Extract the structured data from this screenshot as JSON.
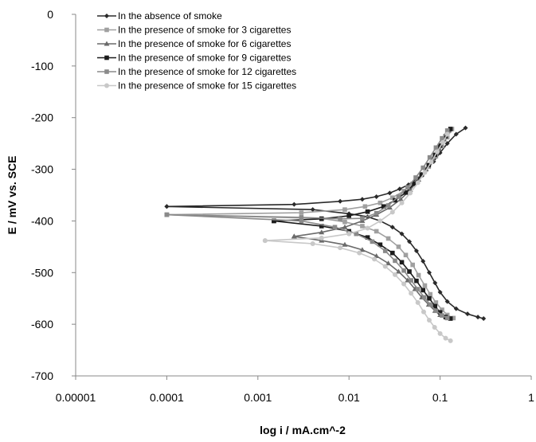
{
  "chart_data": {
    "type": "scatter",
    "title": "",
    "xlabel": "log i / mA.cm^-2",
    "ylabel": "E / mV vs. SCE",
    "x_scale": "log",
    "xlim": [
      1e-05,
      1
    ],
    "ylim": [
      -700,
      0
    ],
    "x_ticks": [
      1e-05,
      0.0001,
      0.001,
      0.01,
      0.1,
      1
    ],
    "x_tick_labels": [
      "0.00001",
      "0.0001",
      "0.001",
      "0.01",
      "0.1",
      "1"
    ],
    "y_ticks": [
      0,
      -100,
      -200,
      -300,
      -400,
      -500,
      -600,
      -700
    ],
    "y_tick_labels": [
      "0",
      "-100",
      "-200",
      "-300",
      "-400",
      "-500",
      "-600",
      "-700"
    ],
    "grid": false,
    "legend_position": "top-left",
    "series": [
      {
        "name": "In the absence of smoke",
        "color": "#2a2a2a",
        "marker": "diamond",
        "anodic": [
          [
            0.0001,
            -372
          ],
          [
            0.0025,
            -368
          ],
          [
            0.008,
            -362
          ],
          [
            0.014,
            -358
          ],
          [
            0.02,
            -353
          ],
          [
            0.028,
            -346
          ],
          [
            0.036,
            -338
          ],
          [
            0.045,
            -330
          ],
          [
            0.056,
            -318
          ],
          [
            0.07,
            -302
          ],
          [
            0.085,
            -285
          ],
          [
            0.1,
            -268
          ],
          [
            0.12,
            -250
          ],
          [
            0.15,
            -232
          ],
          [
            0.19,
            -220
          ]
        ],
        "cathodic": [
          [
            0.0001,
            -372
          ],
          [
            0.004,
            -378
          ],
          [
            0.01,
            -386
          ],
          [
            0.016,
            -392
          ],
          [
            0.022,
            -400
          ],
          [
            0.03,
            -412
          ],
          [
            0.038,
            -425
          ],
          [
            0.046,
            -440
          ],
          [
            0.055,
            -458
          ],
          [
            0.065,
            -478
          ],
          [
            0.076,
            -500
          ],
          [
            0.088,
            -520
          ],
          [
            0.1,
            -538
          ],
          [
            0.12,
            -556
          ],
          [
            0.15,
            -570
          ],
          [
            0.2,
            -580
          ],
          [
            0.26,
            -586
          ],
          [
            0.3,
            -589
          ]
        ]
      },
      {
        "name": "In the presence of smoke for 3 cigarettes",
        "color": "#a0a0a0",
        "marker": "square",
        "anodic": [
          [
            0.0001,
            -388
          ],
          [
            0.003,
            -384
          ],
          [
            0.009,
            -378
          ],
          [
            0.015,
            -372
          ],
          [
            0.022,
            -365
          ],
          [
            0.03,
            -355
          ],
          [
            0.04,
            -342
          ],
          [
            0.05,
            -328
          ],
          [
            0.062,
            -312
          ],
          [
            0.075,
            -295
          ],
          [
            0.09,
            -275
          ],
          [
            0.105,
            -255
          ],
          [
            0.12,
            -238
          ],
          [
            0.135,
            -222
          ]
        ],
        "cathodic": [
          [
            0.0001,
            -388
          ],
          [
            0.005,
            -395
          ],
          [
            0.009,
            -402
          ],
          [
            0.014,
            -410
          ],
          [
            0.02,
            -420
          ],
          [
            0.027,
            -434
          ],
          [
            0.035,
            -450
          ],
          [
            0.042,
            -466
          ],
          [
            0.05,
            -485
          ],
          [
            0.058,
            -505
          ],
          [
            0.068,
            -525
          ],
          [
            0.078,
            -542
          ],
          [
            0.09,
            -558
          ],
          [
            0.105,
            -572
          ],
          [
            0.12,
            -582
          ],
          [
            0.14,
            -588
          ]
        ]
      },
      {
        "name": "In the presence of smoke for 6 cigarettes",
        "color": "#6a6a6a",
        "marker": "triangle",
        "anodic": [
          [
            0.0025,
            -430
          ],
          [
            0.005,
            -422
          ],
          [
            0.009,
            -412
          ],
          [
            0.014,
            -400
          ],
          [
            0.02,
            -388
          ],
          [
            0.028,
            -374
          ],
          [
            0.037,
            -358
          ],
          [
            0.047,
            -340
          ],
          [
            0.058,
            -320
          ],
          [
            0.07,
            -300
          ],
          [
            0.083,
            -280
          ],
          [
            0.097,
            -260
          ],
          [
            0.11,
            -242
          ],
          [
            0.125,
            -225
          ]
        ],
        "cathodic": [
          [
            0.0025,
            -430
          ],
          [
            0.005,
            -438
          ],
          [
            0.009,
            -446
          ],
          [
            0.014,
            -456
          ],
          [
            0.02,
            -468
          ],
          [
            0.027,
            -482
          ],
          [
            0.035,
            -498
          ],
          [
            0.044,
            -515
          ],
          [
            0.053,
            -532
          ],
          [
            0.063,
            -548
          ],
          [
            0.075,
            -562
          ],
          [
            0.088,
            -574
          ],
          [
            0.1,
            -582
          ],
          [
            0.12,
            -588
          ]
        ]
      },
      {
        "name": "In the presence of smoke for 9 cigarettes",
        "color": "#1c1c1c",
        "marker": "square",
        "anodic": [
          [
            0.0015,
            -400
          ],
          [
            0.005,
            -396
          ],
          [
            0.01,
            -390
          ],
          [
            0.016,
            -382
          ],
          [
            0.024,
            -372
          ],
          [
            0.032,
            -360
          ],
          [
            0.042,
            -345
          ],
          [
            0.052,
            -328
          ],
          [
            0.063,
            -310
          ],
          [
            0.075,
            -292
          ],
          [
            0.088,
            -272
          ],
          [
            0.1,
            -254
          ],
          [
            0.115,
            -236
          ],
          [
            0.13,
            -222
          ]
        ],
        "cathodic": [
          [
            0.0015,
            -400
          ],
          [
            0.005,
            -410
          ],
          [
            0.01,
            -420
          ],
          [
            0.016,
            -432
          ],
          [
            0.022,
            -446
          ],
          [
            0.03,
            -462
          ],
          [
            0.038,
            -480
          ],
          [
            0.046,
            -498
          ],
          [
            0.055,
            -516
          ],
          [
            0.065,
            -534
          ],
          [
            0.076,
            -550
          ],
          [
            0.088,
            -565
          ],
          [
            0.1,
            -577
          ],
          [
            0.115,
            -586
          ],
          [
            0.13,
            -589
          ]
        ]
      },
      {
        "name": "In the presence of smoke for 12 cigarettes",
        "color": "#8a8a8a",
        "marker": "square",
        "anodic": [
          [
            0.0001,
            -388
          ],
          [
            0.003,
            -393
          ],
          [
            0.008,
            -396
          ],
          [
            0.014,
            -395
          ],
          [
            0.02,
            -385
          ],
          [
            0.027,
            -370
          ],
          [
            0.035,
            -353
          ],
          [
            0.044,
            -335
          ],
          [
            0.054,
            -316
          ],
          [
            0.065,
            -297
          ],
          [
            0.077,
            -277
          ],
          [
            0.09,
            -258
          ],
          [
            0.105,
            -240
          ],
          [
            0.12,
            -225
          ]
        ],
        "cathodic": [
          [
            0.0001,
            -388
          ],
          [
            0.003,
            -400
          ],
          [
            0.007,
            -412
          ],
          [
            0.012,
            -425
          ],
          [
            0.018,
            -440
          ],
          [
            0.025,
            -458
          ],
          [
            0.032,
            -477
          ],
          [
            0.04,
            -496
          ],
          [
            0.048,
            -515
          ],
          [
            0.057,
            -532
          ],
          [
            0.067,
            -548
          ],
          [
            0.078,
            -562
          ],
          [
            0.09,
            -574
          ],
          [
            0.105,
            -583
          ],
          [
            0.12,
            -588
          ]
        ]
      },
      {
        "name": "In the presence of smoke for 15 cigarettes",
        "color": "#c8c8c8",
        "marker": "circle",
        "anodic": [
          [
            0.0012,
            -438
          ],
          [
            0.005,
            -433
          ],
          [
            0.01,
            -425
          ],
          [
            0.016,
            -414
          ],
          [
            0.022,
            -400
          ],
          [
            0.03,
            -383
          ],
          [
            0.038,
            -365
          ],
          [
            0.047,
            -346
          ],
          [
            0.057,
            -326
          ],
          [
            0.068,
            -306
          ],
          [
            0.08,
            -286
          ],
          [
            0.093,
            -266
          ],
          [
            0.107,
            -248
          ],
          [
            0.12,
            -232
          ]
        ],
        "cathodic": [
          [
            0.0012,
            -438
          ],
          [
            0.004,
            -444
          ],
          [
            0.008,
            -452
          ],
          [
            0.013,
            -462
          ],
          [
            0.019,
            -474
          ],
          [
            0.025,
            -488
          ],
          [
            0.032,
            -504
          ],
          [
            0.04,
            -522
          ],
          [
            0.048,
            -540
          ],
          [
            0.057,
            -558
          ],
          [
            0.066,
            -576
          ],
          [
            0.076,
            -592
          ],
          [
            0.087,
            -606
          ],
          [
            0.1,
            -618
          ],
          [
            0.115,
            -627
          ],
          [
            0.13,
            -632
          ]
        ]
      }
    ]
  }
}
